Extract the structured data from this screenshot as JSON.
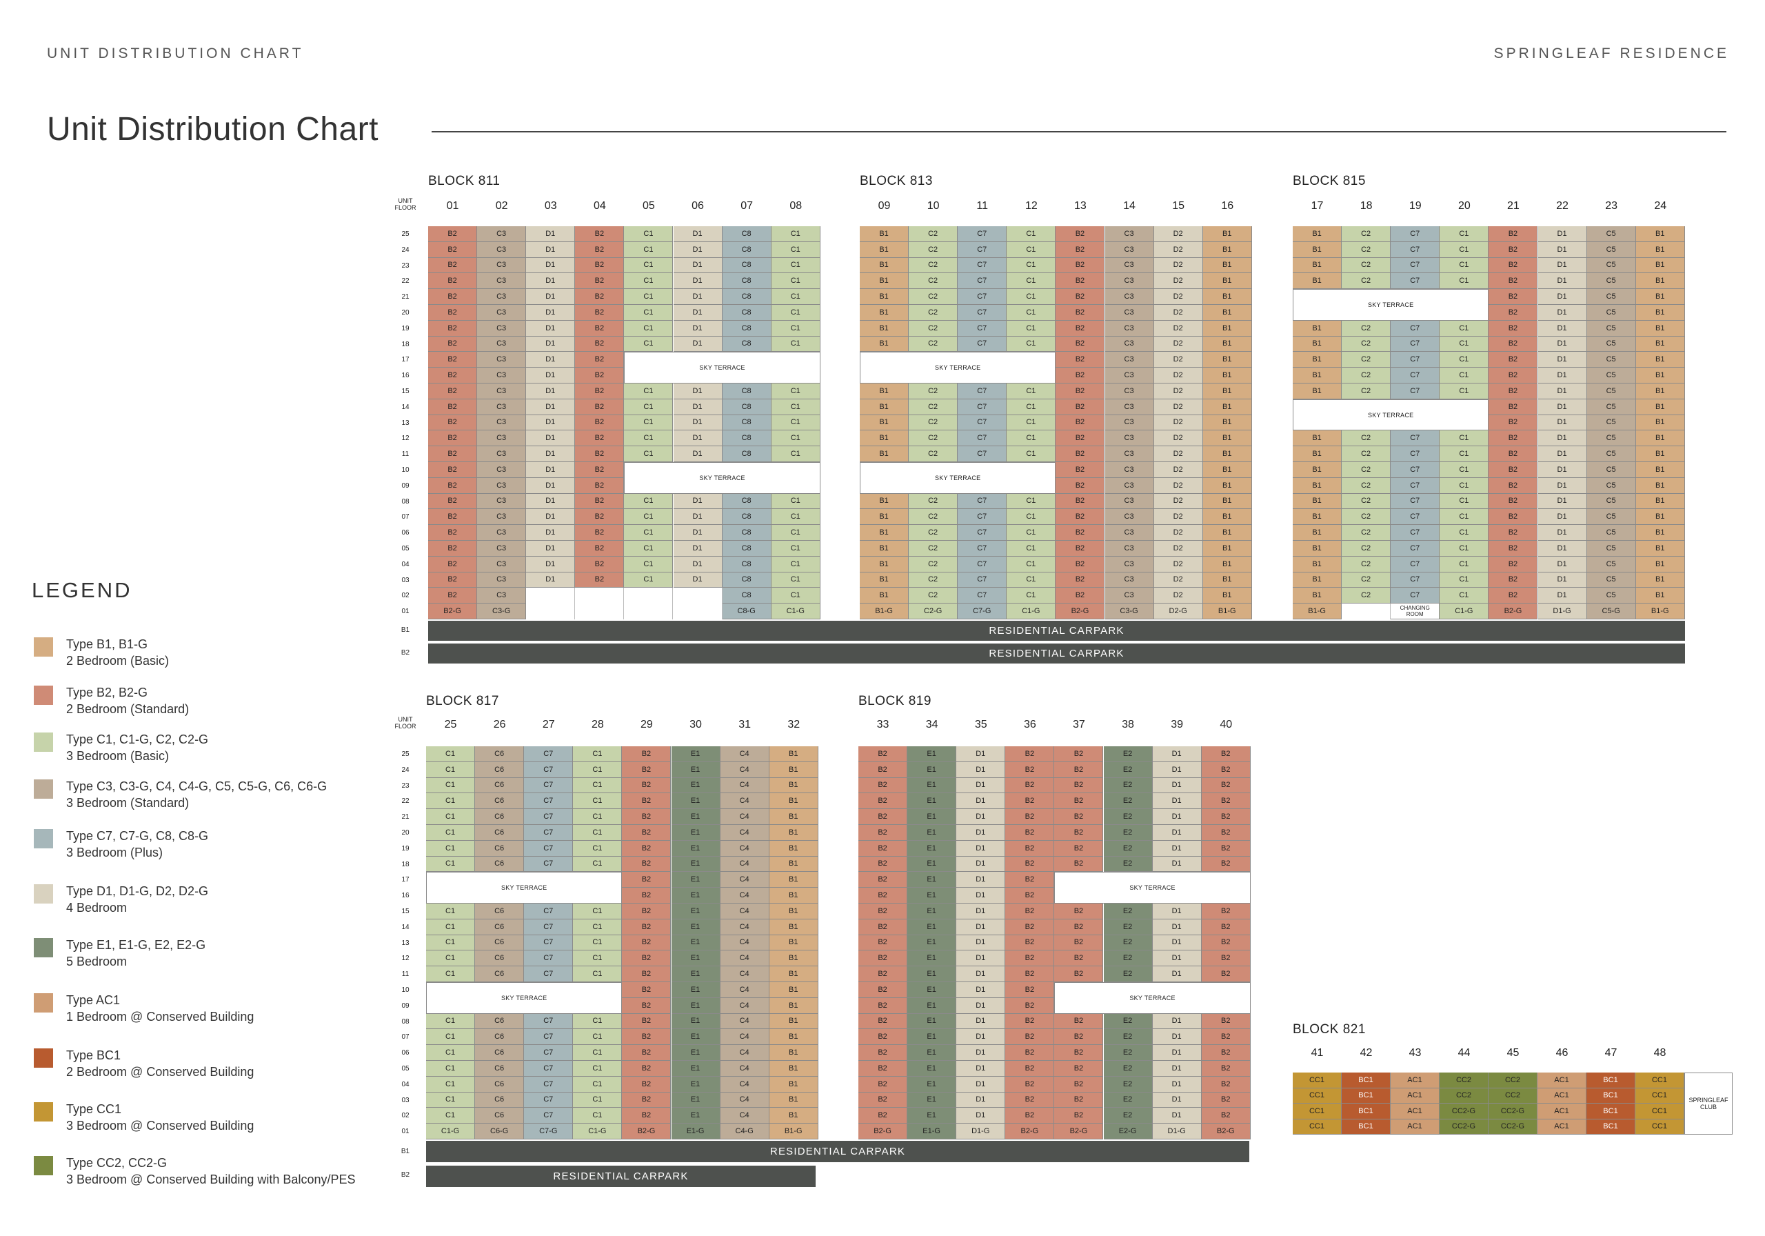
{
  "header": {
    "left": "UNIT DISTRIBUTION CHART",
    "right": "SPRINGLEAF RESIDENCE"
  },
  "title": "Unit Distribution Chart",
  "legend": {
    "heading": "LEGEND",
    "items": [
      {
        "line1": "Type B1, B1-G",
        "line2": "2 Bedroom (Basic)",
        "color": "#d5ad82"
      },
      {
        "line1": "Type B2, B2-G",
        "line2": "2 Bedroom (Standard)",
        "color": "#cf8b76"
      },
      {
        "line1": "Type C1, C1-G, C2, C2-G",
        "line2": "3 Bedroom (Basic)",
        "color": "#c6d3aa"
      },
      {
        "line1": "Type C3, C3-G, C4, C4-G, C5, C5-G, C6, C6-G",
        "line2": "3 Bedroom (Standard)",
        "color": "#bdac98"
      },
      {
        "line1": "Type C7, C7-G, C8, C8-G",
        "line2": "3 Bedroom (Plus)",
        "color": "#a6b7ba"
      },
      {
        "line1": "Type D1, D1-G, D2, D2-G",
        "line2": "4 Bedroom",
        "color": "#d9d2bf"
      },
      {
        "line1": "Type E1, E1-G, E2, E2-G",
        "line2": "5 Bedroom",
        "color": "#7e8e76"
      },
      {
        "line1": "Type AC1",
        "line2": "1 Bedroom @ Conserved Building",
        "color": "#cf9d74"
      },
      {
        "line1": "Type BC1",
        "line2": "2 Bedroom @ Conserved Building",
        "color": "#b85b2f"
      },
      {
        "line1": "Type CC1",
        "line2": "3 Bedroom @ Conserved Building",
        "color": "#c39634"
      },
      {
        "line1": "Type CC2, CC2-G",
        "line2": "3 Bedroom @ Conserved Building with Balcony/PES",
        "color": "#7b8a41"
      }
    ]
  },
  "labels": {
    "unit_floor": "UNIT FLOOR",
    "sky_terrace": "SKY TERRACE",
    "changing_room": "CHANGING ROOM",
    "residential_carpark": "RESIDENTIAL CARPARK",
    "springleaf_club": "SPRINGLEAF CLUB",
    "b1": "B1",
    "b2": "B2"
  },
  "blocks": [
    {
      "name": "BLOCK 811",
      "units": [
        {
          "no": "01",
          "type": "B2",
          "ground": "B2-G"
        },
        {
          "no": "02",
          "type": "C3",
          "ground": "C3-G"
        },
        {
          "no": "03",
          "type": "D1",
          "ground": "",
          "top_floor": 3
        },
        {
          "no": "04",
          "type": "B2",
          "ground": "",
          "top_floor": 3
        },
        {
          "no": "05",
          "type": "C1",
          "ground": "",
          "top_floor": 3,
          "sky": [
            [
              16,
              17
            ],
            [
              9,
              10
            ]
          ]
        },
        {
          "no": "06",
          "type": "D1",
          "ground": "",
          "top_floor": 3,
          "sky": [
            [
              16,
              17
            ],
            [
              9,
              10
            ]
          ]
        },
        {
          "no": "07",
          "type": "C8",
          "ground": "C8-G",
          "sky": [
            [
              16,
              17
            ],
            [
              9,
              10
            ]
          ]
        },
        {
          "no": "08",
          "type": "C1",
          "ground": "C1-G",
          "sky": [
            [
              16,
              17
            ],
            [
              9,
              10
            ]
          ]
        }
      ]
    },
    {
      "name": "BLOCK 813",
      "units": [
        {
          "no": "09",
          "type": "B1",
          "ground": "B1-G",
          "sky": [
            [
              16,
              17
            ],
            [
              9,
              10
            ]
          ]
        },
        {
          "no": "10",
          "type": "C2",
          "ground": "C2-G",
          "sky": [
            [
              16,
              17
            ],
            [
              9,
              10
            ]
          ]
        },
        {
          "no": "11",
          "type": "C7",
          "ground": "C7-G",
          "sky": [
            [
              16,
              17
            ],
            [
              9,
              10
            ]
          ]
        },
        {
          "no": "12",
          "type": "C1",
          "ground": "C1-G",
          "sky": [
            [
              16,
              17
            ],
            [
              9,
              10
            ]
          ]
        },
        {
          "no": "13",
          "type": "B2",
          "ground": "B2-G"
        },
        {
          "no": "14",
          "type": "C3",
          "ground": "C3-G"
        },
        {
          "no": "15",
          "type": "D2",
          "ground": "D2-G"
        },
        {
          "no": "16",
          "type": "B1",
          "ground": "B1-G"
        }
      ]
    },
    {
      "name": "BLOCK 815",
      "units": [
        {
          "no": "17",
          "type": "B1",
          "ground": "B1-G",
          "sky": [
            [
              20,
              21
            ],
            [
              13,
              14
            ]
          ]
        },
        {
          "no": "18",
          "type": "C2",
          "ground": "",
          "top_floor": 2,
          "sky": [
            [
              20,
              21
            ],
            [
              13,
              14
            ]
          ]
        },
        {
          "no": "19",
          "type": "C7",
          "ground": "CHANGING ROOM",
          "sky": [
            [
              20,
              21
            ],
            [
              13,
              14
            ]
          ]
        },
        {
          "no": "20",
          "type": "C1",
          "ground": "C1-G",
          "sky": [
            [
              20,
              21
            ],
            [
              13,
              14
            ]
          ]
        },
        {
          "no": "21",
          "type": "B2",
          "ground": "B2-G"
        },
        {
          "no": "22",
          "type": "D1",
          "ground": "D1-G"
        },
        {
          "no": "23",
          "type": "C5",
          "ground": "C5-G"
        },
        {
          "no": "24",
          "type": "B1",
          "ground": "B1-G"
        }
      ]
    },
    {
      "name": "BLOCK 817",
      "units": [
        {
          "no": "25",
          "type": "C1",
          "ground": "C1-G",
          "sky": [
            [
              16,
              17
            ],
            [
              9,
              10
            ]
          ]
        },
        {
          "no": "26",
          "type": "C6",
          "ground": "C6-G",
          "sky": [
            [
              16,
              17
            ],
            [
              9,
              10
            ]
          ]
        },
        {
          "no": "27",
          "type": "C7",
          "ground": "C7-G",
          "sky": [
            [
              16,
              17
            ],
            [
              9,
              10
            ]
          ]
        },
        {
          "no": "28",
          "type": "C1",
          "ground": "C1-G",
          "sky": [
            [
              16,
              17
            ],
            [
              9,
              10
            ]
          ]
        },
        {
          "no": "29",
          "type": "B2",
          "ground": "B2-G"
        },
        {
          "no": "30",
          "type": "E1",
          "ground": "E1-G"
        },
        {
          "no": "31",
          "type": "C4",
          "ground": "C4-G"
        },
        {
          "no": "32",
          "type": "B1",
          "ground": "B1-G"
        }
      ]
    },
    {
      "name": "BLOCK 819",
      "units": [
        {
          "no": "33",
          "type": "B2",
          "ground": "B2-G"
        },
        {
          "no": "34",
          "type": "E1",
          "ground": "E1-G"
        },
        {
          "no": "35",
          "type": "D1",
          "ground": "D1-G"
        },
        {
          "no": "36",
          "type": "B2",
          "ground": "B2-G"
        },
        {
          "no": "37",
          "type": "B2",
          "ground": "B2-G",
          "sky": [
            [
              16,
              17
            ],
            [
              9,
              10
            ]
          ]
        },
        {
          "no": "38",
          "type": "E2",
          "ground": "E2-G",
          "sky": [
            [
              16,
              17
            ],
            [
              9,
              10
            ]
          ]
        },
        {
          "no": "39",
          "type": "D1",
          "ground": "D1-G",
          "sky": [
            [
              16,
              17
            ],
            [
              9,
              10
            ]
          ]
        },
        {
          "no": "40",
          "type": "B2",
          "ground": "B2-G",
          "sky": [
            [
              16,
              17
            ],
            [
              9,
              10
            ]
          ]
        }
      ]
    },
    {
      "name": "BLOCK 821",
      "units": [
        {
          "no": "41",
          "rows": [
            "CC1",
            "CC1",
            "CC1",
            "CC1"
          ]
        },
        {
          "no": "42",
          "rows": [
            "BC1",
            "BC1",
            "BC1",
            "BC1"
          ]
        },
        {
          "no": "43",
          "rows": [
            "AC1",
            "AC1",
            "AC1",
            "AC1"
          ]
        },
        {
          "no": "44",
          "rows": [
            "CC2",
            "CC2",
            "CC2-G",
            "CC2-G"
          ]
        },
        {
          "no": "45",
          "rows": [
            "CC2",
            "CC2",
            "CC2-G",
            "CC2-G"
          ]
        },
        {
          "no": "46",
          "rows": [
            "AC1",
            "AC1",
            "AC1",
            "AC1"
          ]
        },
        {
          "no": "47",
          "rows": [
            "BC1",
            "BC1",
            "BC1",
            "BC1"
          ]
        },
        {
          "no": "48",
          "rows": [
            "CC1",
            "CC1",
            "CC1",
            "CC1"
          ]
        }
      ]
    }
  ],
  "floors": [
    "25",
    "24",
    "23",
    "22",
    "21",
    "20",
    "19",
    "18",
    "17",
    "16",
    "15",
    "14",
    "13",
    "12",
    "11",
    "10",
    "09",
    "08",
    "07",
    "06",
    "05",
    "04",
    "03",
    "02",
    "01"
  ]
}
